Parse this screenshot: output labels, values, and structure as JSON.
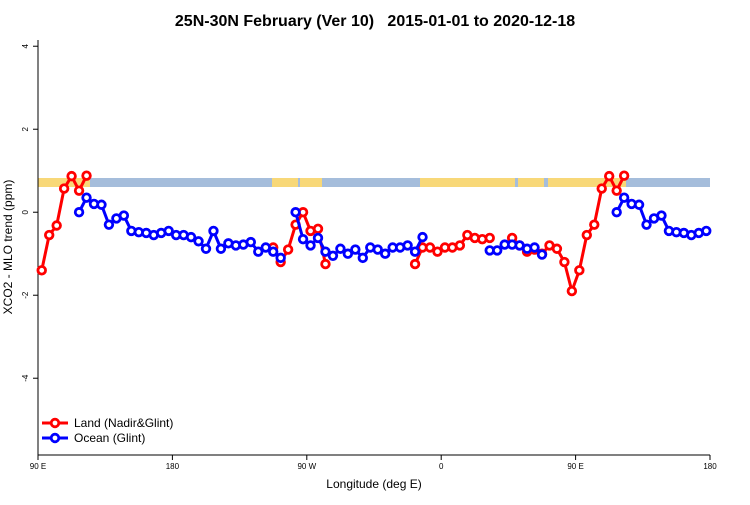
{
  "chart_data": {
    "type": "line",
    "title": "25N-30N February (Ver 10)   2015-01-01 to 2020-12-18",
    "x_label": "Longitude (deg E)",
    "y_label": "XCO2 - MLO trend (ppm)",
    "x": [
      92.5,
      97.5,
      102.5,
      107.5,
      112.5,
      117.5,
      122.5,
      127.5,
      132.5,
      137.5,
      142.5,
      147.5,
      152.5,
      157.5,
      162.5,
      167.5,
      172.5,
      177.5,
      182.5,
      187.5,
      192.5,
      197.5,
      202.5,
      207.5,
      212.5,
      217.5,
      222.5,
      227.5,
      232.5,
      237.5,
      242.5,
      247.5,
      252.5,
      257.5,
      262.5,
      267.5,
      272.5,
      277.5,
      282.5,
      287.5,
      292.5,
      297.5,
      302.5,
      307.5,
      312.5,
      317.5,
      322.5,
      327.5,
      332.5,
      337.5,
      342.5,
      347.5,
      352.5,
      357.5,
      362.5,
      367.5,
      372.5,
      377.5,
      382.5,
      387.5,
      392.5,
      397.5,
      402.5,
      407.5,
      412.5,
      417.5,
      422.5,
      427.5,
      432.5,
      437.5,
      442.5,
      447.5,
      452.5,
      457.5,
      462.5,
      467.5,
      472.5,
      477.5,
      482.5,
      487.5,
      492.5,
      497.5,
      502.5,
      507.5,
      512.5,
      517.5,
      522.5,
      527.5,
      532.5,
      537.5
    ],
    "series": [
      {
        "name": "Land (Nadir&Glint)",
        "color": "#ff0000",
        "values": [
          -1.4,
          -0.55,
          -0.32,
          0.57,
          0.87,
          0.52,
          0.88,
          null,
          null,
          null,
          null,
          null,
          null,
          null,
          null,
          null,
          null,
          null,
          null,
          null,
          null,
          null,
          null,
          null,
          null,
          null,
          null,
          null,
          null,
          null,
          null,
          -0.85,
          -1.2,
          -0.9,
          -0.3,
          0.0,
          -0.45,
          -0.4,
          -1.25,
          null,
          null,
          null,
          null,
          null,
          null,
          null,
          null,
          null,
          null,
          null,
          -1.25,
          -0.85,
          -0.85,
          -0.95,
          -0.85,
          -0.85,
          -0.8,
          -0.55,
          -0.62,
          -0.65,
          -0.62,
          null,
          null,
          -0.62,
          -0.8,
          -0.95,
          -0.9,
          -1.0,
          -0.8,
          -0.88,
          -1.2,
          -1.9,
          -1.4,
          -0.55,
          -0.3,
          0.57,
          0.87,
          0.52,
          0.88,
          null,
          null,
          null,
          null,
          null,
          null,
          null,
          null,
          null,
          null,
          null
        ]
      },
      {
        "name": "Ocean (Glint)",
        "color": "#0000ff",
        "values": [
          null,
          null,
          null,
          null,
          null,
          0.0,
          0.35,
          0.2,
          0.18,
          -0.3,
          -0.15,
          -0.08,
          -0.45,
          -0.48,
          -0.5,
          -0.55,
          -0.5,
          -0.45,
          -0.55,
          -0.55,
          -0.6,
          -0.7,
          -0.88,
          -0.45,
          -0.88,
          -0.75,
          -0.8,
          -0.78,
          -0.72,
          -0.95,
          -0.85,
          -0.95,
          -1.1,
          null,
          0.0,
          -0.65,
          -0.8,
          -0.62,
          -0.95,
          -1.05,
          -0.88,
          -1.0,
          -0.9,
          -1.1,
          -0.85,
          -0.9,
          -1.0,
          -0.85,
          -0.85,
          -0.8,
          -0.95,
          -0.6,
          null,
          null,
          null,
          null,
          null,
          null,
          null,
          null,
          -0.92,
          -0.92,
          -0.78,
          -0.78,
          -0.8,
          -0.88,
          -0.85,
          -1.02,
          null,
          null,
          null,
          null,
          null,
          null,
          null,
          null,
          null,
          0.0,
          0.35,
          0.2,
          0.18,
          -0.3,
          -0.15,
          -0.08,
          -0.45,
          -0.48,
          -0.5,
          -0.55,
          -0.5,
          -0.45
        ]
      }
    ],
    "xlim": [
      90,
      540
    ],
    "xticks": [
      {
        "value": 90,
        "label": "90 E"
      },
      180,
      {
        "value": 270,
        "label": "90 W"
      },
      {
        "value": 360,
        "label": "0"
      },
      {
        "value": 450,
        "label": "90 E"
      },
      {
        "value": 540,
        "label": "180"
      }
    ],
    "ylim": [
      -5.85,
      4.15
    ],
    "yticks": [
      -4,
      -2,
      0,
      2,
      4
    ],
    "legend": "bottom-left"
  }
}
